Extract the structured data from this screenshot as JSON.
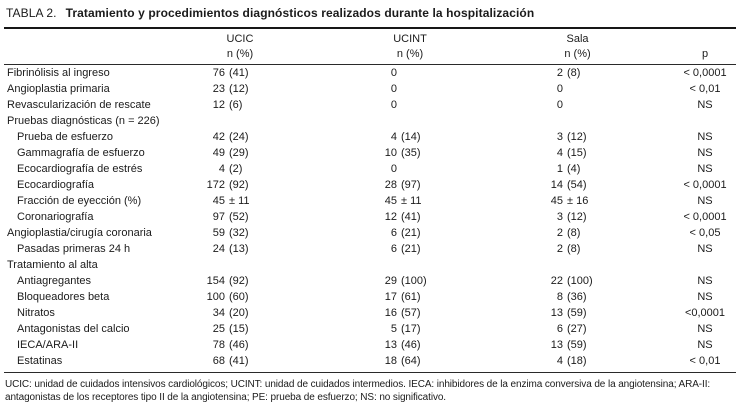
{
  "title": {
    "label": "TABLA 2.",
    "text": "Tratamiento y procedimientos diagnósticos realizados durante la hospitalización"
  },
  "table": {
    "columns": [
      {
        "line1": "UCIC",
        "line2": "n (%)"
      },
      {
        "line1": "UCINT",
        "line2": "n (%)"
      },
      {
        "line1": "Sala",
        "line2": "n (%)"
      },
      {
        "line1": "",
        "line2": "p"
      }
    ],
    "rows": [
      {
        "label": "Fibrinólisis al ingreso",
        "indent": 0,
        "ucic": "76 (41)",
        "ucint": "0",
        "sala": "2 (8)",
        "p": "< 0,0001"
      },
      {
        "label": "Angioplastia primaria",
        "indent": 0,
        "ucic": "23 (12)",
        "ucint": "0",
        "sala": "0",
        "p": "< 0,01"
      },
      {
        "label": "Revascularización de rescate",
        "indent": 0,
        "ucic": "12 (6)",
        "ucint": "0",
        "sala": "0",
        "p": "NS"
      },
      {
        "label": "Pruebas diagnósticas (n = 226)",
        "indent": 0,
        "ucic": "",
        "ucint": "",
        "sala": "",
        "p": ""
      },
      {
        "label": "Prueba de esfuerzo",
        "indent": 1,
        "ucic": "42 (24)",
        "ucint": "4 (14)",
        "sala": "3 (12)",
        "p": "NS"
      },
      {
        "label": "Gammagrafía de esfuerzo",
        "indent": 1,
        "ucic": "49 (29)",
        "ucint": "10 (35)",
        "sala": "4 (15)",
        "p": "NS"
      },
      {
        "label": "Ecocardiografía de estrés",
        "indent": 1,
        "ucic": "4 (2)",
        "ucint": "0",
        "sala": "1 (4)",
        "p": "NS"
      },
      {
        "label": "Ecocardiografía",
        "indent": 1,
        "ucic": "172 (92)",
        "ucint": "28 (97)",
        "sala": "14 (54)",
        "p": "< 0,0001"
      },
      {
        "label": "Fracción de eyección (%)",
        "indent": 1,
        "ucic": "45 ± 11",
        "ucint": "45 ± 11",
        "sala": "45 ± 16",
        "p": "NS"
      },
      {
        "label": "Coronariografía",
        "indent": 1,
        "ucic": "97 (52)",
        "ucint": "12 (41)",
        "sala": "3 (12)",
        "p": "< 0,0001"
      },
      {
        "label": "Angioplastia/cirugía coronaria",
        "indent": 0,
        "ucic": "59 (32)",
        "ucint": "6 (21)",
        "sala": "2 (8)",
        "p": "< 0,05"
      },
      {
        "label": "Pasadas primeras 24 h",
        "indent": 1,
        "ucic": "24 (13)",
        "ucint": "6 (21)",
        "sala": "2 (8)",
        "p": "NS"
      },
      {
        "label": "Tratamiento al alta",
        "indent": 0,
        "ucic": "",
        "ucint": "",
        "sala": "",
        "p": ""
      },
      {
        "label": "Antiagregantes",
        "indent": 1,
        "ucic": "154 (92)",
        "ucint": "29 (100)",
        "sala": "22 (100)",
        "p": "NS"
      },
      {
        "label": "Bloqueadores beta",
        "indent": 1,
        "ucic": "100 (60)",
        "ucint": "17 (61)",
        "sala": "8 (36)",
        "p": "NS"
      },
      {
        "label": "Nitratos",
        "indent": 1,
        "ucic": "34 (20)",
        "ucint": "16 (57)",
        "sala": "13 (59)",
        "p": "<0,0001"
      },
      {
        "label": "Antagonistas del calcio",
        "indent": 1,
        "ucic": "25 (15)",
        "ucint": "5 (17)",
        "sala": "6 (27)",
        "p": "NS"
      },
      {
        "label": "IECA/ARA-II",
        "indent": 1,
        "ucic": "78 (46)",
        "ucint": "13 (46)",
        "sala": "13 (59)",
        "p": "NS"
      },
      {
        "label": "Estatinas",
        "indent": 1,
        "ucic": "68 (41)",
        "ucint": "18 (64)",
        "sala": "4 (18)",
        "p": "< 0,01"
      }
    ]
  },
  "footnote": "UCIC: unidad de cuidados intensivos cardiológicos; UCINT: unidad de cuidados intermedios. IECA: inhibidores de la enzima conversiva de la angiotensina; ARA-II: antagonistas de los receptores tipo II de la angiotensina; PE: prueba de esfuerzo; NS: no significativo."
}
